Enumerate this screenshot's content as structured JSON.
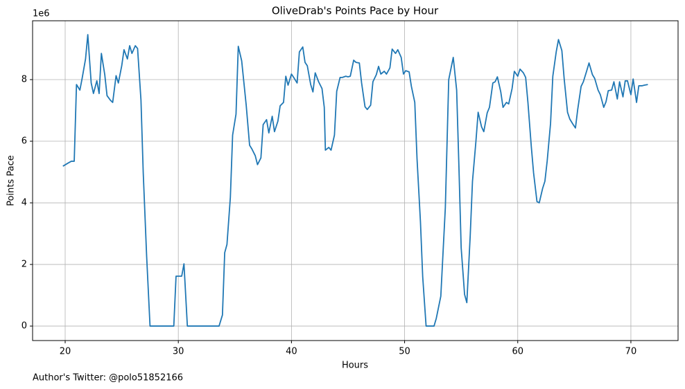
{
  "chart_data": {
    "type": "line",
    "title": "OliveDrab's Points Pace by Hour",
    "x_label": "Hours",
    "y_label": "Points Pace",
    "y_offset_label": "1e6",
    "footnote": "Author's Twitter: @polo51852166",
    "x": [
      19.8,
      20.3,
      20.55,
      20.8,
      21.0,
      21.3,
      21.5,
      21.8,
      22.0,
      22.3,
      22.5,
      22.8,
      23.0,
      23.2,
      23.5,
      23.7,
      24.0,
      24.2,
      24.5,
      24.7,
      25.0,
      25.2,
      25.5,
      25.7,
      25.9,
      26.2,
      26.4,
      26.7,
      26.9,
      27.2,
      27.5,
      28.5,
      29.6,
      29.8,
      30.0,
      30.3,
      30.5,
      30.8,
      33.6,
      33.9,
      34.1,
      34.3,
      34.6,
      34.8,
      35.1,
      35.3,
      35.6,
      35.8,
      36.0,
      36.3,
      36.5,
      36.8,
      37.0,
      37.3,
      37.5,
      37.8,
      38.0,
      38.3,
      38.5,
      38.8,
      39.0,
      39.3,
      39.5,
      39.7,
      40.0,
      40.2,
      40.5,
      40.7,
      41.0,
      41.2,
      41.4,
      41.7,
      41.9,
      42.1,
      42.4,
      42.7,
      42.9,
      43.0,
      43.3,
      43.5,
      43.8,
      44.0,
      44.3,
      44.5,
      44.8,
      45.0,
      45.2,
      45.5,
      45.7,
      46.0,
      46.2,
      46.5,
      46.7,
      47.0,
      47.2,
      47.5,
      47.7,
      47.9,
      48.2,
      48.4,
      48.7,
      48.9,
      49.2,
      49.4,
      49.7,
      49.9,
      50.1,
      50.4,
      50.6,
      50.9,
      51.1,
      51.4,
      51.6,
      51.9,
      52.6,
      52.8,
      53.2,
      53.6,
      53.9,
      54.3,
      54.6,
      54.8,
      55.0,
      55.3,
      55.5,
      55.8,
      56.0,
      56.3,
      56.5,
      56.8,
      57.0,
      57.3,
      57.5,
      57.8,
      58.0,
      58.2,
      58.5,
      58.7,
      59.0,
      59.2,
      59.5,
      59.7,
      60.0,
      60.2,
      60.5,
      60.7,
      60.9,
      61.2,
      61.4,
      61.7,
      61.9,
      62.2,
      62.4,
      62.6,
      62.9,
      63.1,
      63.4,
      63.6,
      63.9,
      64.1,
      64.4,
      64.6,
      64.9,
      65.1,
      65.3,
      65.6,
      65.8,
      66.1,
      66.3,
      66.6,
      66.8,
      67.1,
      67.3,
      67.6,
      67.8,
      68.0,
      68.3,
      68.5,
      68.8,
      69.0,
      69.3,
      69.5,
      69.7,
      70.0,
      70.2,
      70.5,
      70.7,
      71.0,
      71.2,
      71.5
    ],
    "series": [
      {
        "color": "#1f77b4",
        "values": [
          5.19,
          5.3,
          5.35,
          5.35,
          7.84,
          7.66,
          8.04,
          8.67,
          9.46,
          7.89,
          7.55,
          7.96,
          7.55,
          8.85,
          8.16,
          7.48,
          7.33,
          7.26,
          8.13,
          7.89,
          8.45,
          8.97,
          8.67,
          9.1,
          8.85,
          9.1,
          9.01,
          7.33,
          4.97,
          2.27,
          0,
          0,
          0,
          1.62,
          1.62,
          1.62,
          2.02,
          0,
          0,
          0.36,
          2.38,
          2.65,
          4.18,
          6.2,
          6.88,
          9.08,
          8.61,
          7.89,
          7.17,
          5.87,
          5.75,
          5.53,
          5.24,
          5.46,
          6.54,
          6.7,
          6.27,
          6.81,
          6.31,
          6.65,
          7.15,
          7.26,
          8.11,
          7.82,
          8.18,
          8.07,
          7.89,
          8.9,
          9.06,
          8.56,
          8.45,
          7.84,
          7.6,
          8.22,
          7.93,
          7.71,
          7.1,
          5.71,
          5.8,
          5.71,
          6.2,
          7.62,
          8.07,
          8.07,
          8.11,
          8.09,
          8.11,
          8.63,
          8.56,
          8.54,
          7.89,
          7.12,
          7.03,
          7.17,
          7.93,
          8.16,
          8.43,
          8.18,
          8.27,
          8.18,
          8.38,
          8.99,
          8.85,
          8.97,
          8.72,
          8.18,
          8.29,
          8.25,
          7.78,
          7.26,
          5.42,
          3.39,
          1.6,
          0,
          0,
          0.25,
          0.97,
          3.84,
          8,
          8.72,
          7.66,
          5.19,
          2.54,
          1.03,
          0.76,
          2.94,
          4.7,
          5.98,
          6.94,
          6.47,
          6.31,
          6.92,
          7.1,
          7.89,
          7.93,
          8.09,
          7.6,
          7.1,
          7.26,
          7.21,
          7.71,
          8.27,
          8.11,
          8.34,
          8.22,
          8.07,
          7.26,
          5.82,
          4.97,
          4.04,
          4.0,
          4.47,
          4.7,
          5.35,
          6.58,
          8.11,
          8.9,
          9.3,
          8.94,
          8.04,
          6.94,
          6.72,
          6.54,
          6.43,
          7.03,
          7.78,
          7.93,
          8.29,
          8.54,
          8.16,
          8.04,
          7.66,
          7.51,
          7.1,
          7.28,
          7.64,
          7.66,
          7.93,
          7.37,
          7.93,
          7.44,
          7.96,
          7.96,
          7.51,
          8.02,
          7.26,
          7.8,
          7.8,
          7.82,
          7.84
        ]
      }
    ],
    "xlim": [
      17.12,
      74.17
    ],
    "ylim": [
      -0.47,
      9.91
    ],
    "xticks": [
      20,
      30,
      40,
      50,
      60,
      70
    ],
    "yticks": [
      0,
      2,
      4,
      6,
      8
    ],
    "grid": true
  }
}
